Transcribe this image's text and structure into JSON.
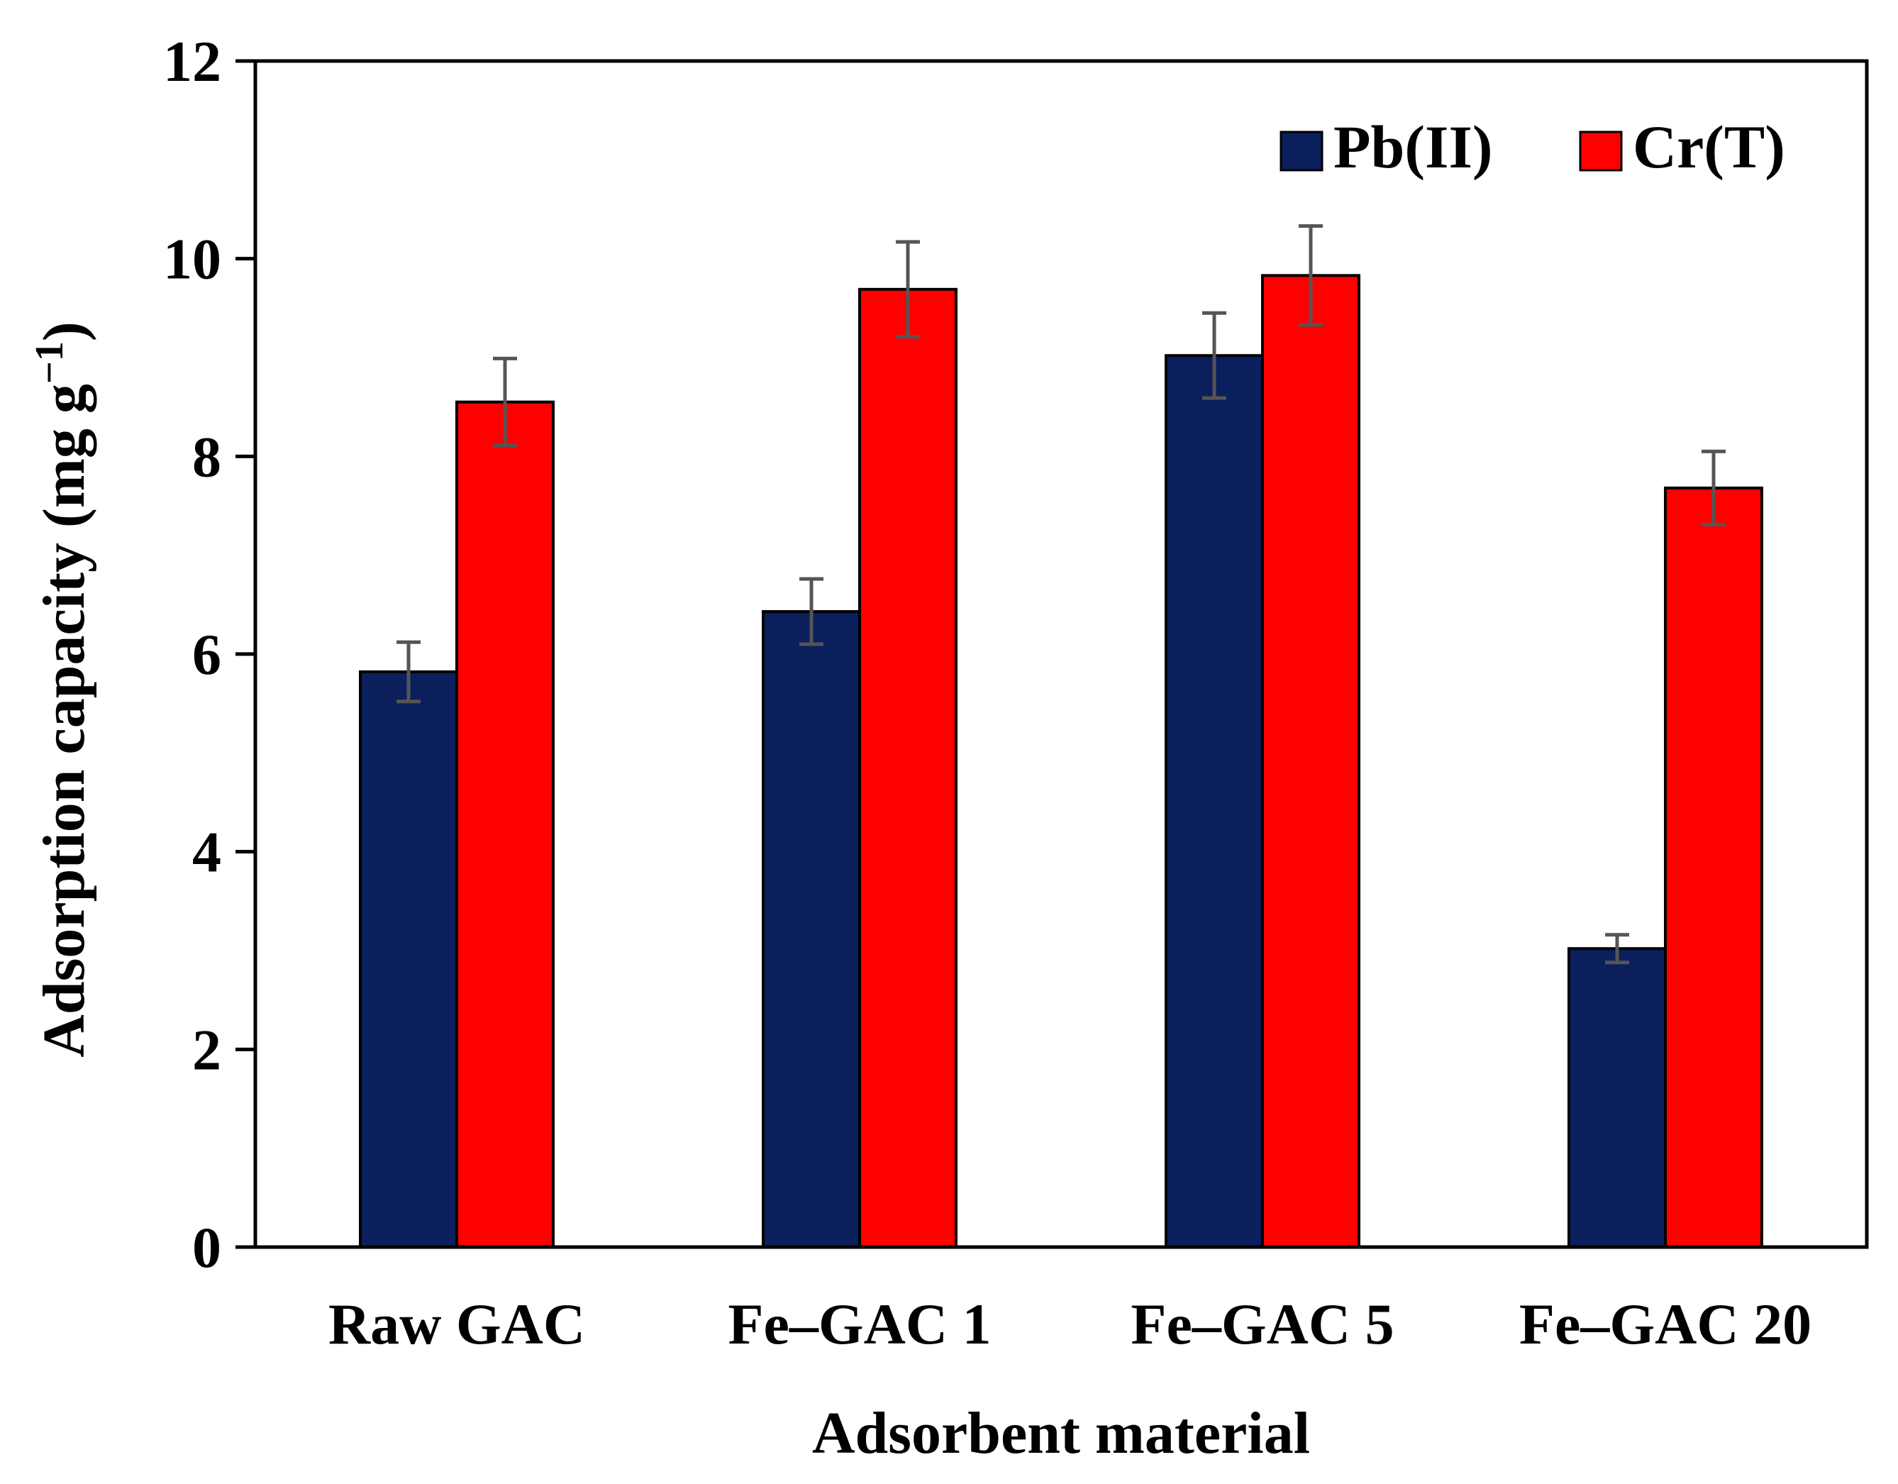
{
  "chart_data": {
    "type": "bar",
    "title": "",
    "xlabel": "Adsorbent material",
    "ylabel": "Adsorption capacity (mg g",
    "ylabel_superscript": "−1",
    "ylabel_close": ")",
    "categories": [
      "Raw GAC",
      "Fe–GAC 1",
      "Fe–GAC 5",
      "Fe–GAC 20"
    ],
    "ylim": [
      0,
      12
    ],
    "yticks": [
      0,
      2,
      4,
      6,
      8,
      10,
      12
    ],
    "grid": false,
    "legend_position": "top-right",
    "series": [
      {
        "name": "Pb(II)",
        "color": "#0b1f5c",
        "values": [
          5.82,
          6.43,
          9.02,
          3.02
        ],
        "errors": [
          0.3,
          0.33,
          0.43,
          0.14
        ]
      },
      {
        "name": "Cr(T)",
        "color": "#ff0000",
        "values": [
          8.55,
          9.69,
          9.83,
          7.68
        ],
        "errors": [
          0.44,
          0.48,
          0.5,
          0.37
        ]
      }
    ]
  }
}
